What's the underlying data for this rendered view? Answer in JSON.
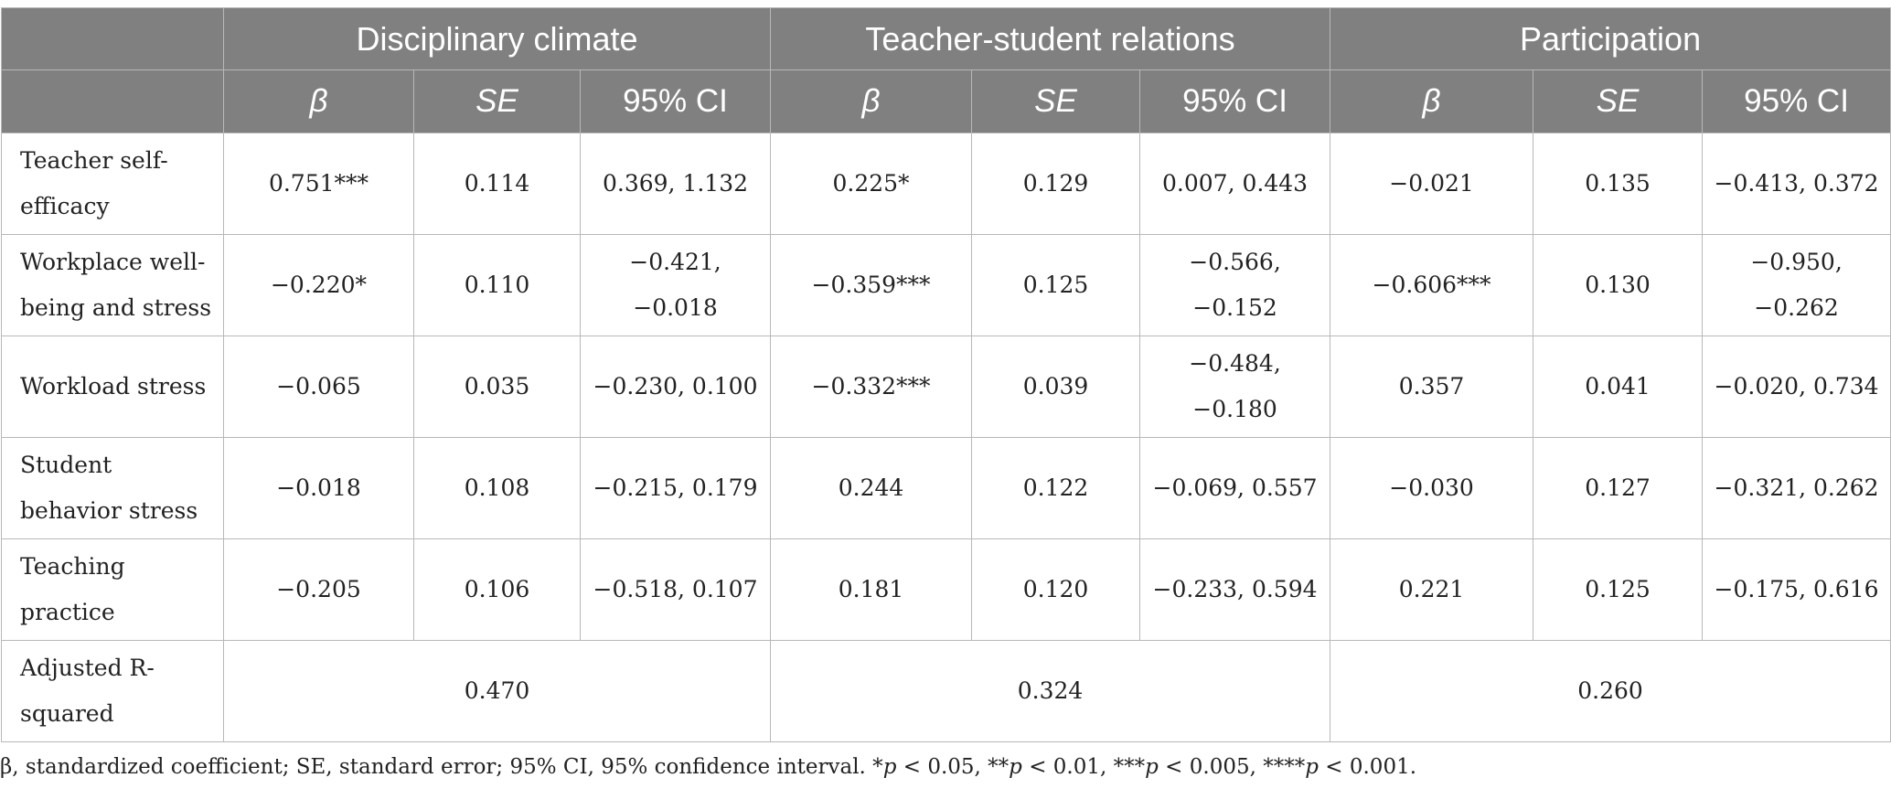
{
  "groups": [
    "Disciplinary climate",
    "Teacher-student relations",
    "Participation"
  ],
  "subheaders": {
    "beta": "β",
    "se": "SE",
    "ci": "95% CI"
  },
  "rows": [
    {
      "label": "Teacher self-efficacy",
      "dc": {
        "beta": "0.751***",
        "se": "0.114",
        "ci": "0.369, 1.132"
      },
      "tsr": {
        "beta": "0.225*",
        "se": "0.129",
        "ci": "0.007, 0.443"
      },
      "par": {
        "beta": "−0.021",
        "se": "0.135",
        "ci": "−0.413, 0.372"
      }
    },
    {
      "label": "Workplace well-being and stress",
      "dc": {
        "beta": "−0.220*",
        "se": "0.110",
        "ci": "−0.421, −0.018"
      },
      "tsr": {
        "beta": "−0.359***",
        "se": "0.125",
        "ci": "−0.566, −0.152"
      },
      "par": {
        "beta": "−0.606***",
        "se": "0.130",
        "ci": "−0.950, −0.262"
      }
    },
    {
      "label": "Workload stress",
      "dc": {
        "beta": "−0.065",
        "se": "0.035",
        "ci": "−0.230, 0.100"
      },
      "tsr": {
        "beta": "−0.332***",
        "se": "0.039",
        "ci": "−0.484, −0.180"
      },
      "par": {
        "beta": "0.357",
        "se": "0.041",
        "ci": "−0.020, 0.734"
      }
    },
    {
      "label": "Student behavior stress",
      "dc": {
        "beta": "−0.018",
        "se": "0.108",
        "ci": "−0.215, 0.179"
      },
      "tsr": {
        "beta": "0.244",
        "se": "0.122",
        "ci": "−0.069, 0.557"
      },
      "par": {
        "beta": "−0.030",
        "se": "0.127",
        "ci": "−0.321, 0.262"
      }
    },
    {
      "label": "Teaching practice",
      "dc": {
        "beta": "−0.205",
        "se": "0.106",
        "ci": "−0.518, 0.107"
      },
      "tsr": {
        "beta": "0.181",
        "se": "0.120",
        "ci": "−0.233, 0.594"
      },
      "par": {
        "beta": "0.221",
        "se": "0.125",
        "ci": "−0.175, 0.616"
      }
    }
  ],
  "adjusted_r_squared": {
    "label": "Adjusted R-squared",
    "dc": "0.470",
    "tsr": "0.324",
    "par": "0.260"
  },
  "note": {
    "text1": "β, standardized coefficient; SE, standard error; 95% CI, 95% confidence interval. *",
    "p1": "p",
    "text2": " < 0.05, **",
    "p2": "p",
    "text3": " < 0.01, ***",
    "p3": "p",
    "text4": " < 0.005, ****",
    "p4": "p",
    "text5": " < 0.001."
  }
}
